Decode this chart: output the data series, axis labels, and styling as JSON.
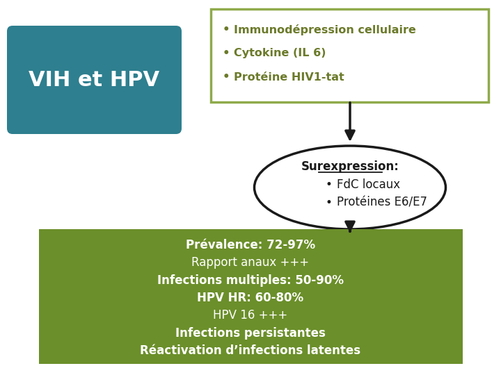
{
  "bg_color": "#ffffff",
  "title_box_color": "#2e7f8f",
  "title_text": "VIH et HPV",
  "title_text_color": "#ffffff",
  "top_box_bg": "#ffffff",
  "top_box_border": "#8faa4b",
  "top_box_items": [
    "Immunodépression cellulaire",
    "Cytokine (IL 6)",
    "Protéine HIV1-tat"
  ],
  "top_box_text_color": "#6b7a2a",
  "ellipse_bg": "#ffffff",
  "ellipse_border": "#1a1a1a",
  "ellipse_title": "Surexpression:",
  "ellipse_items": [
    "FdC locaux",
    "Protéines E6/E7"
  ],
  "ellipse_text_color": "#1a1a1a",
  "bottom_box_color": "#6b8f2a",
  "bottom_box_text_color": "#ffffff",
  "bottom_text_ordered": [
    {
      "text": "Prévalence: 72-97%",
      "bold": true
    },
    {
      "text": "Rapport anaux +++",
      "bold": false
    },
    {
      "text": "Infections multiples: 50-90%",
      "bold": true
    },
    {
      "text": "HPV HR: 60-80%",
      "bold": true
    },
    {
      "text": "HPV 16 +++",
      "bold": false
    },
    {
      "text": "Infections persistantes",
      "bold": true
    },
    {
      "text": "Réactivation d’infections latentes",
      "bold": true
    }
  ],
  "arrow_color": "#1a1a1a"
}
